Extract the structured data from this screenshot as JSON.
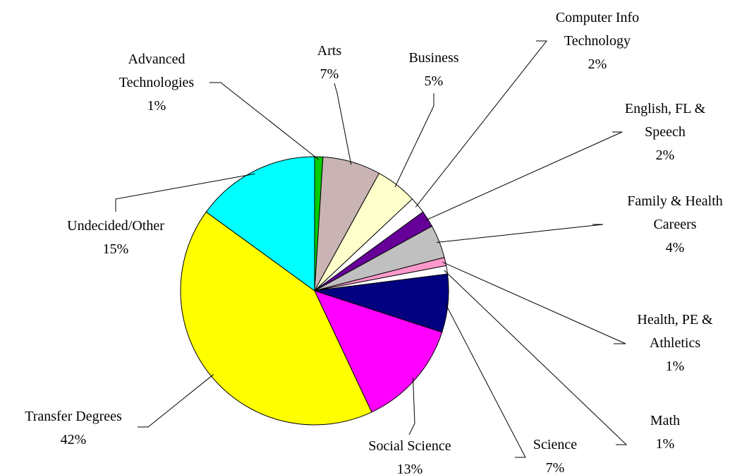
{
  "chart_data": {
    "type": "pie",
    "categories": [
      "Advanced Technologies",
      "Arts",
      "Business",
      "Computer Info Technology",
      "English, FL & Speech",
      "Family & Health Careers",
      "Health, PE & Athletics",
      "Math",
      "Science",
      "Social Science",
      "Transfer Degrees",
      "Undecided/Other"
    ],
    "values": [
      1,
      7,
      5,
      2,
      2,
      4,
      1,
      1,
      7,
      13,
      42,
      15
    ],
    "value_labels": [
      "1%",
      "7%",
      "5%",
      "2%",
      "2%",
      "4%",
      "1%",
      "1%",
      "7%",
      "13%",
      "42%",
      "15%"
    ],
    "colors": [
      "#00cc00",
      "#c9b3b3",
      "#ffffcc",
      "#ffffff",
      "#660099",
      "#c0c0c0",
      "#ff99cc",
      "#ffffff",
      "#000080",
      "#ff00ff",
      "#ffff00",
      "#00ffff"
    ]
  }
}
